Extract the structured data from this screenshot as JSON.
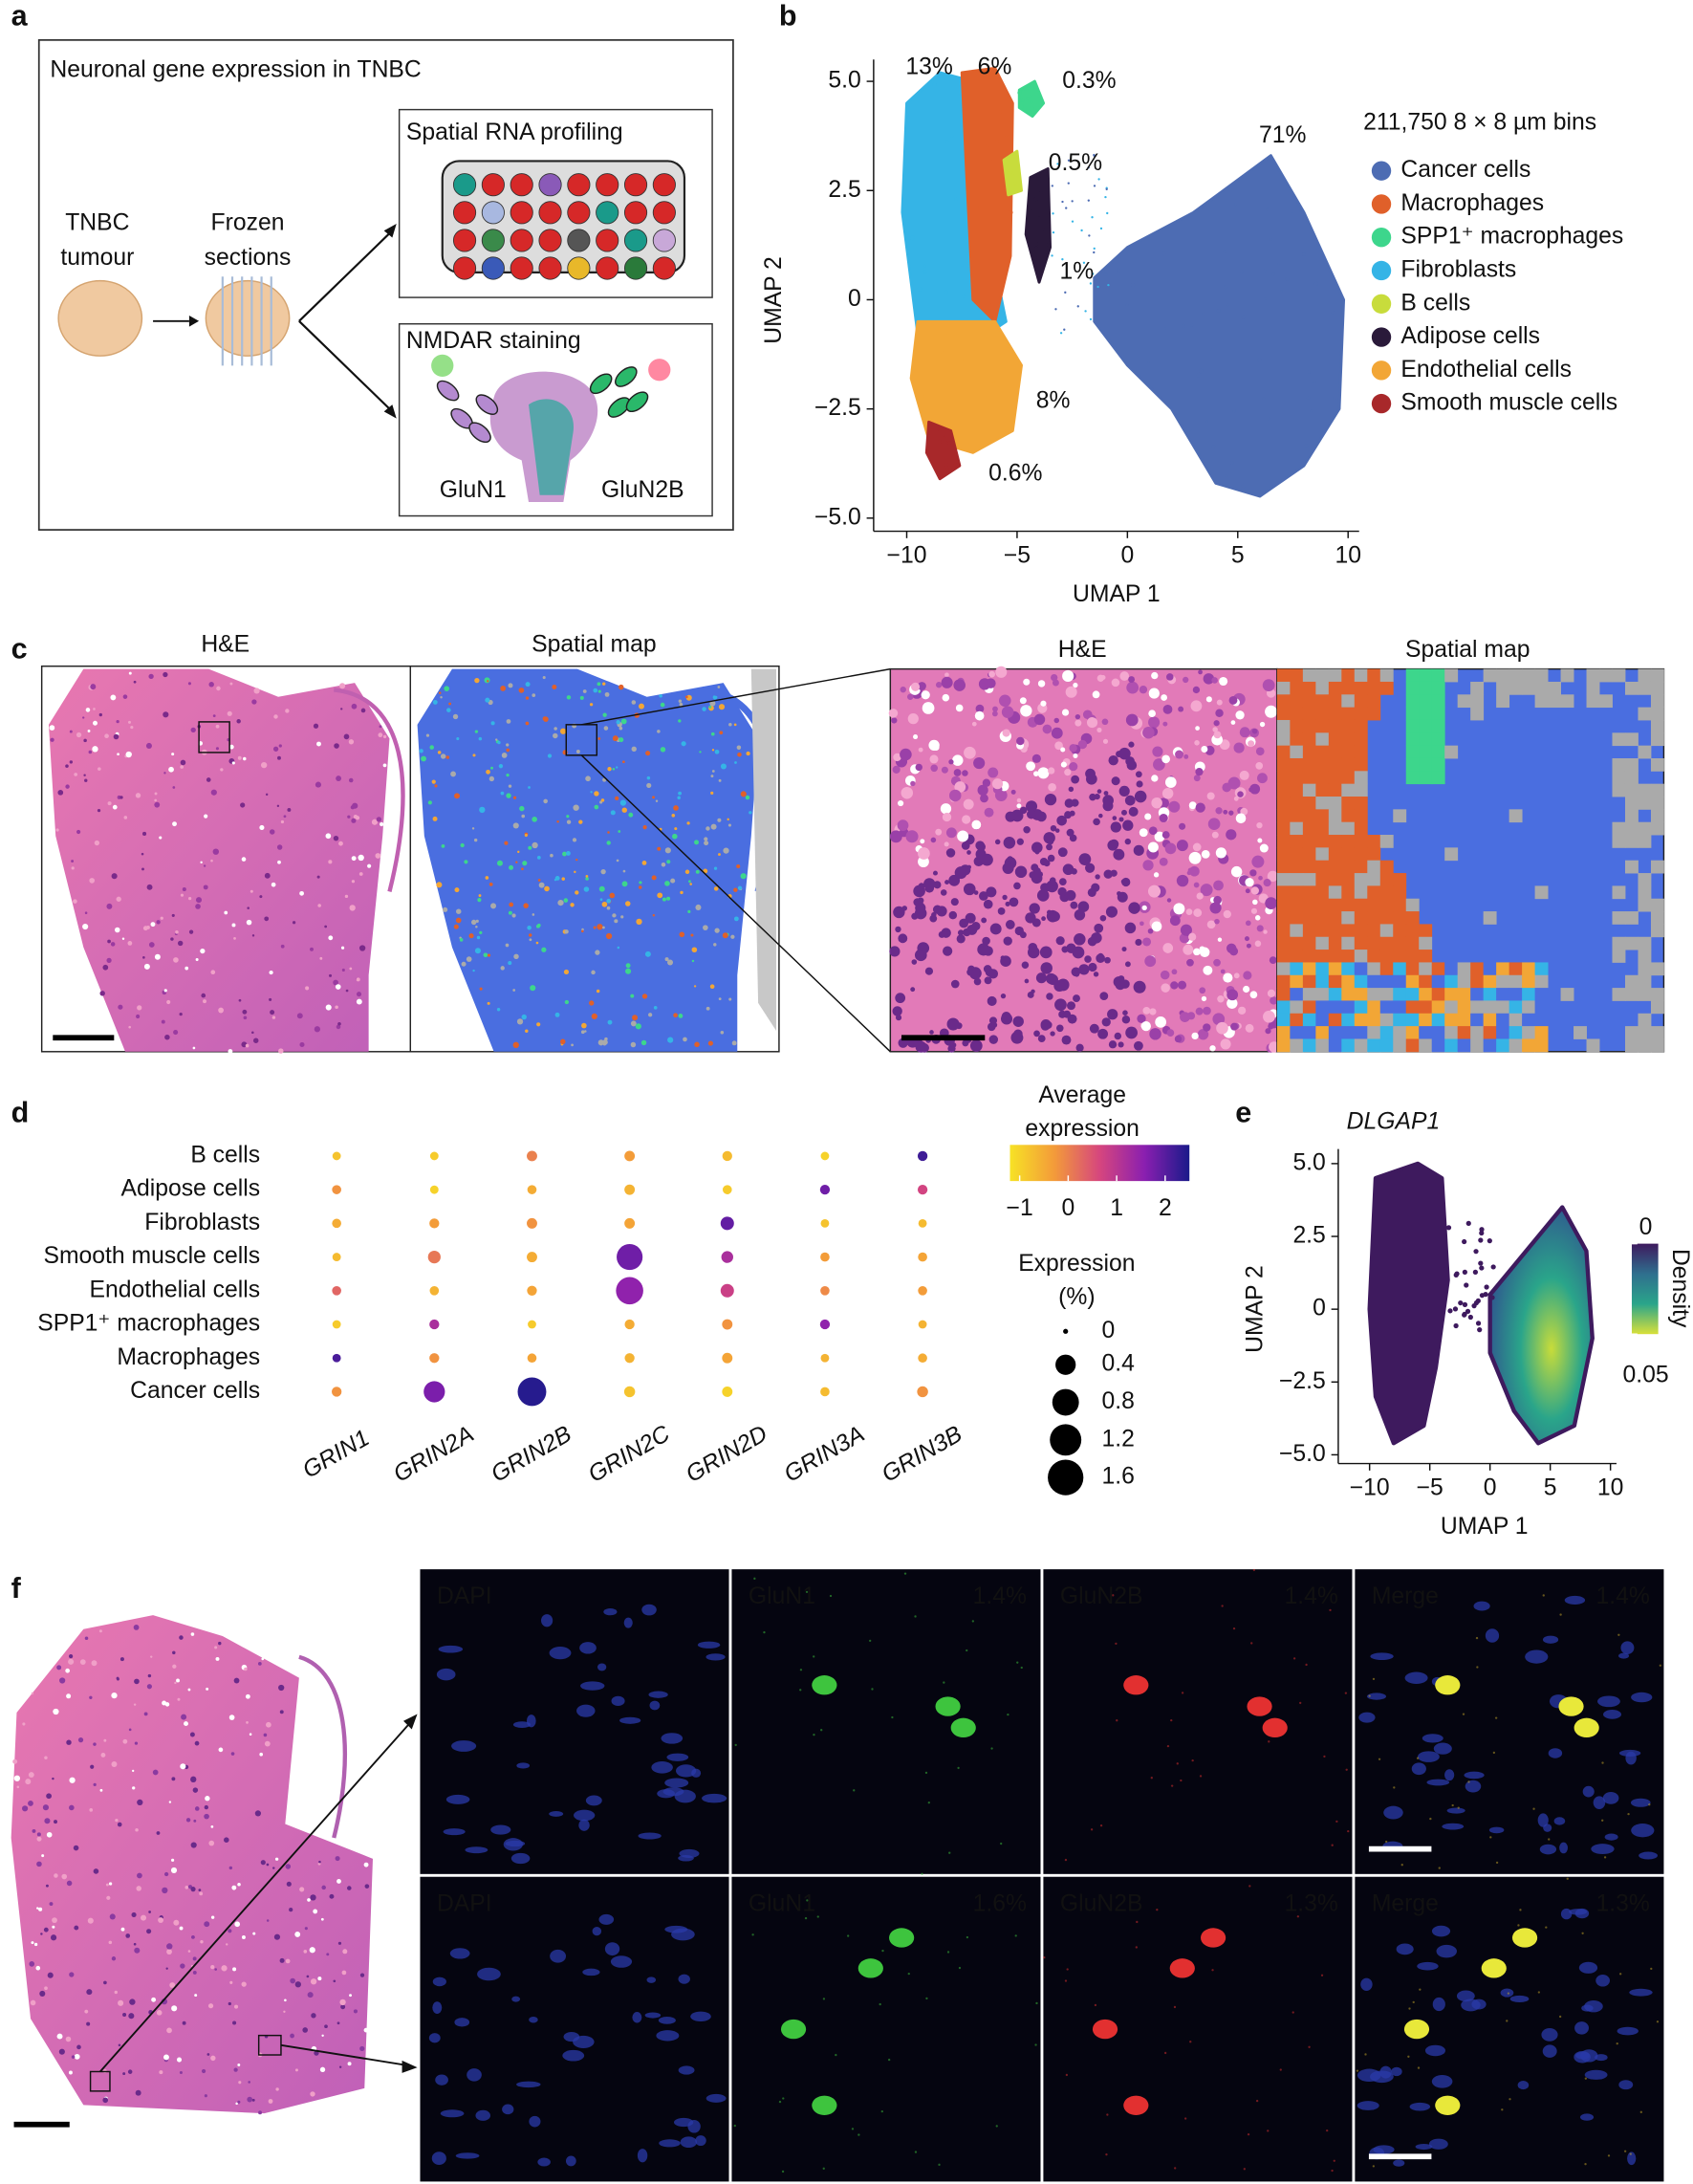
{
  "panels": {
    "a": {
      "label": "a",
      "title": "Neuronal gene expression in TNBC",
      "tumour_label": [
        "TNBC",
        "tumour"
      ],
      "sections_label": [
        "Frozen",
        "sections"
      ],
      "profiling": "Spatial RNA profiling",
      "staining": "NMDAR staining",
      "subunits": [
        "GluN1",
        "GluN2B"
      ]
    },
    "b": {
      "label": "b",
      "type": "scatter",
      "x_label": "UMAP 1",
      "y_label": "UMAP 2",
      "xlim": [
        -11.5,
        10.5
      ],
      "ylim": [
        -5.3,
        5.5
      ],
      "xticks": [
        {
          "value": -10,
          "label": "−10"
        },
        {
          "value": -5,
          "label": "−5"
        },
        0,
        5,
        10
      ],
      "yticks": [
        {
          "value": -5,
          "label": "−5.0"
        },
        {
          "value": -2.5,
          "label": "−2.5"
        },
        0,
        2.5,
        {
          "value": 5,
          "label": "5.0"
        }
      ],
      "legend_title": "211,750 8 × 8 µm bins",
      "series": [
        {
          "name": "Cancer cells",
          "color": "#4d6cb3"
        },
        {
          "name": "Macrophages",
          "color": "#e0602a"
        },
        {
          "name": "SPP1⁺ macrophages",
          "color": "#3dd68c"
        },
        {
          "name": "Fibroblasts",
          "color": "#35b4e6"
        },
        {
          "name": "B cells",
          "color": "#c8dc3c"
        },
        {
          "name": "Adipose cells",
          "color": "#2a1a3a"
        },
        {
          "name": "Endothelial cells",
          "color": "#f2a636"
        },
        {
          "name": "Smooth muscle cells",
          "color": "#a8282a"
        }
      ],
      "shares": [
        71,
        6,
        0.3,
        13,
        0.5,
        1,
        8,
        0.6
      ],
      "share_labels": [
        "71%",
        "6%",
        "0.3%",
        "13%",
        "0.5%",
        "1%",
        "8%",
        "0.6%"
      ]
    },
    "c": {
      "label": "c",
      "titles": [
        "H&E",
        "Spatial map",
        "H&E",
        "Spatial map"
      ]
    },
    "d": {
      "label": "d",
      "type": "dot",
      "genes": [
        "GRIN1",
        "GRIN2A",
        "GRIN2B",
        "GRIN2C",
        "GRIN2D",
        "GRIN3A",
        "GRIN3B"
      ],
      "cell_types": [
        "B cells",
        "Adipose cells",
        "Fibroblasts",
        "Smooth muscle cells",
        "Endothelial cells",
        "SPP1⁺ macrophages",
        "Macrophages",
        "Cancer cells"
      ],
      "expression": [
        [
          -0.8,
          -0.9,
          0,
          -0.3,
          -0.7,
          -1,
          2.2
        ],
        [
          -0.2,
          -1,
          -0.5,
          -0.6,
          -0.9,
          1.8,
          0.7
        ],
        [
          -0.5,
          -0.3,
          -0.2,
          -0.4,
          1.9,
          -0.8,
          -0.7
        ],
        [
          -0.7,
          0.1,
          -0.5,
          1.8,
          1.2,
          -0.3,
          -0.4
        ],
        [
          0.3,
          -0.6,
          -0.4,
          1.5,
          0.8,
          -0.1,
          -0.3
        ],
        [
          -0.9,
          1.2,
          -0.9,
          -0.5,
          -0.2,
          1.5,
          -0.6
        ],
        [
          2.1,
          -0.2,
          -0.4,
          -0.6,
          -0.4,
          -0.6,
          -0.5
        ],
        [
          -0.2,
          1.7,
          2.4,
          -0.8,
          -1,
          -0.7,
          -0.2
        ]
      ],
      "percent": [
        [
          0.02,
          0.02,
          0.05,
          0.05,
          0.04,
          0.02,
          0.04
        ],
        [
          0.03,
          0.02,
          0.03,
          0.05,
          0.03,
          0.04,
          0.04
        ],
        [
          0.03,
          0.04,
          0.05,
          0.05,
          0.12,
          0.02,
          0.02
        ],
        [
          0.02,
          0.1,
          0.05,
          0.75,
          0.08,
          0.03,
          0.03
        ],
        [
          0.03,
          0.03,
          0.04,
          0.85,
          0.12,
          0.03,
          0.03
        ],
        [
          0.02,
          0.04,
          0.02,
          0.04,
          0.05,
          0.04,
          0.02
        ],
        [
          0.02,
          0.04,
          0.03,
          0.04,
          0.05,
          0.02,
          0.03
        ],
        [
          0.04,
          0.45,
          0.95,
          0.06,
          0.05,
          0.03,
          0.06
        ]
      ],
      "colorbar_title": [
        "Average",
        "expression"
      ],
      "colorbar_lim": [
        -1.2,
        2.5
      ],
      "colorbar_ticks": [
        {
          "value": -1,
          "label": "−1"
        },
        0,
        1,
        2
      ],
      "colormap": [
        "#f7e225",
        "#f39a3a",
        "#d6467e",
        "#8a1fb0",
        "#1a1a8a"
      ],
      "size_title": [
        "Expression",
        "(%)"
      ],
      "size_ticks": [
        0,
        0.4,
        0.8,
        1.2,
        1.6
      ]
    },
    "e": {
      "label": "e",
      "gene": "DLGAP1",
      "x_label": "UMAP 1",
      "y_label": "UMAP 2",
      "xlim": [
        -12.6,
        10.5
      ],
      "ylim": [
        -5.3,
        5.5
      ],
      "xticks": [
        {
          "value": -10,
          "label": "−10"
        },
        {
          "value": -5,
          "label": "−5"
        },
        0,
        5,
        10
      ],
      "yticks": [
        {
          "value": -5,
          "label": "−5.0"
        },
        {
          "value": -2.5,
          "label": "−2.5"
        },
        0,
        2.5,
        {
          "value": 5,
          "label": "5.0"
        }
      ],
      "colorbar_title": "Density",
      "colorbar_ticks": [
        0,
        0.05
      ],
      "colormap": [
        "#3e1a5e",
        "#2f6f8e",
        "#2aa58a",
        "#d8e03a"
      ]
    },
    "f": {
      "label": "f",
      "rows": [
        [
          {
            "channel": "DAPI"
          },
          {
            "channel": "GluN1",
            "percent": "1.4%"
          },
          {
            "channel": "GluN2B",
            "percent": "1.4%"
          },
          {
            "channel": "Merge",
            "percent": "1.4%"
          }
        ],
        [
          {
            "channel": "DAPI"
          },
          {
            "channel": "GluN1",
            "percent": "1.6%"
          },
          {
            "channel": "GluN2B",
            "percent": "1.3%"
          },
          {
            "channel": "Merge",
            "percent": "1.3%"
          }
        ]
      ]
    }
  }
}
